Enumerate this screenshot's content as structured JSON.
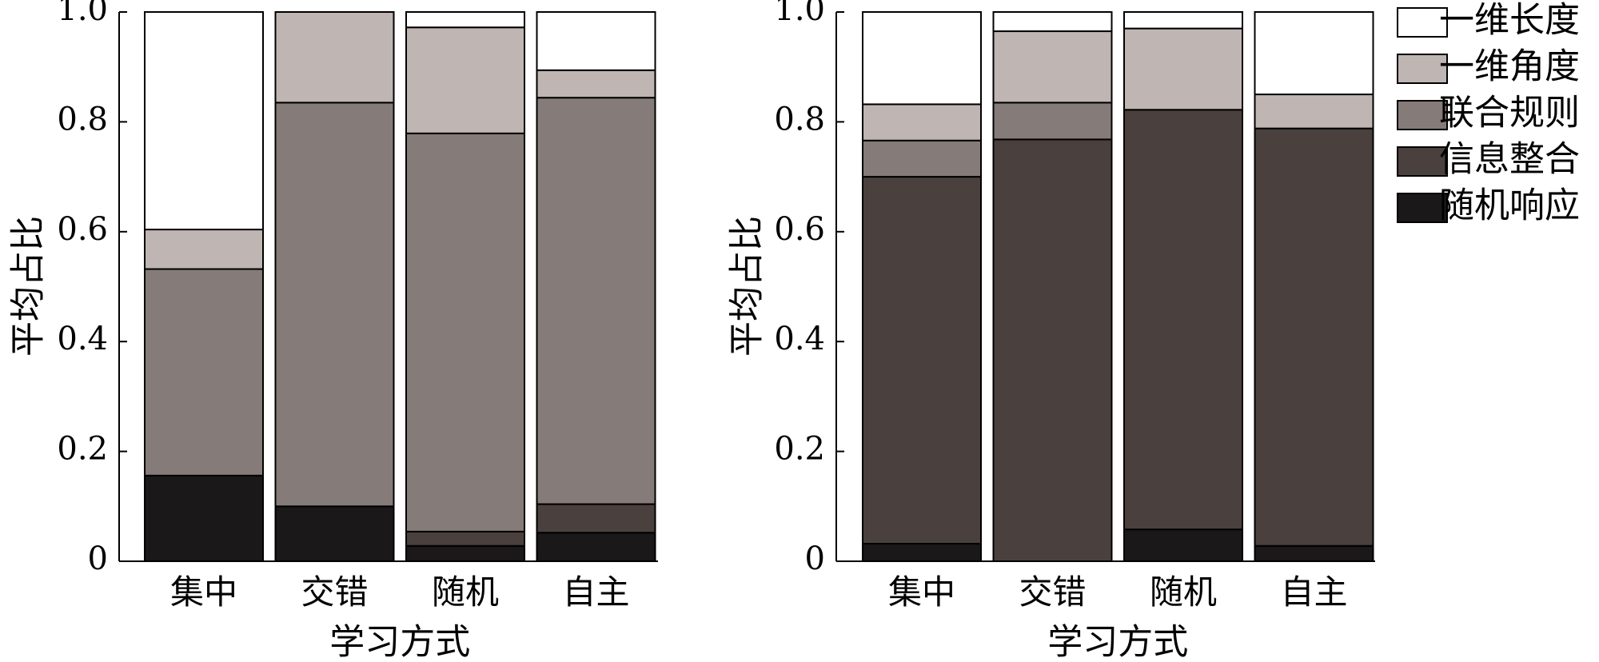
{
  "chart_data": [
    {
      "type": "bar",
      "stacked": true,
      "xlabel": "学习方式",
      "ylabel": "平均占比",
      "categories": [
        "集中",
        "交错",
        "随机",
        "自主"
      ],
      "ylim": [
        0,
        1
      ],
      "yticks": [
        0,
        0.2,
        0.4,
        0.6,
        0.8,
        {
          "value": 1,
          "label": "1.0"
        }
      ],
      "legend": false,
      "series": [
        {
          "name": "随机响应",
          "color": "#1a1818",
          "values": [
            0.156,
            0.1,
            0.028,
            0.052
          ]
        },
        {
          "name": "信息整合",
          "color": "#4a403e",
          "values": [
            0,
            0,
            0.026,
            0.052
          ]
        },
        {
          "name": "联合规则",
          "color": "#857b79",
          "values": [
            0.376,
            0.735,
            0.725,
            0.74
          ]
        },
        {
          "name": "一维角度",
          "color": "#bfb5b2",
          "values": [
            0.072,
            0.165,
            0.193,
            0.05
          ]
        },
        {
          "name": "一维长度",
          "color": "#ffffff",
          "values": [
            0.396,
            0,
            0.028,
            0.106
          ]
        }
      ]
    },
    {
      "type": "bar",
      "stacked": true,
      "xlabel": "学习方式",
      "ylabel": "平均占比",
      "categories": [
        "集中",
        "交错",
        "随机",
        "自主"
      ],
      "ylim": [
        0,
        1
      ],
      "yticks": [
        0,
        0.2,
        0.4,
        0.6,
        0.8,
        {
          "value": 1,
          "label": "1.0"
        }
      ],
      "legend": true,
      "series": [
        {
          "name": "随机响应",
          "color": "#1a1818",
          "values": [
            0.032,
            0,
            0.058,
            0.028
          ]
        },
        {
          "name": "信息整合",
          "color": "#4a403e",
          "values": [
            0.668,
            0.768,
            0.764,
            0.76
          ]
        },
        {
          "name": "联合规则",
          "color": "#857b79",
          "values": [
            0.066,
            0.067,
            0,
            0
          ]
        },
        {
          "name": "一维角度",
          "color": "#bfb5b2",
          "values": [
            0.066,
            0.13,
            0.148,
            0.062
          ]
        },
        {
          "name": "一维长度",
          "color": "#ffffff",
          "values": [
            0.168,
            0.035,
            0.03,
            0.15
          ]
        }
      ]
    }
  ]
}
